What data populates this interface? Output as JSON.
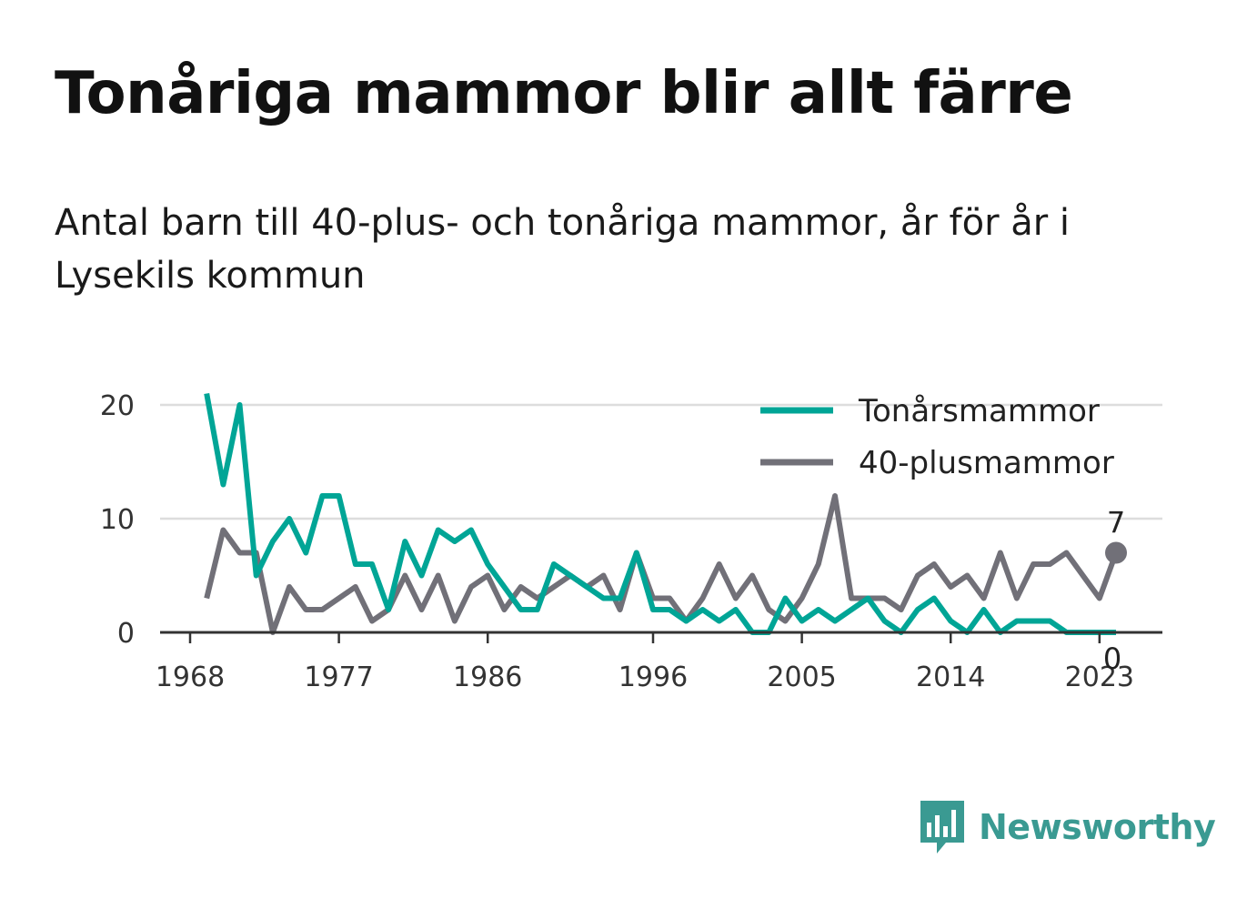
{
  "title": "Tonåriga mammor blir allt färre",
  "subtitle": "Antal barn till 40-plus- och tonåriga mammor, år för år i Lysekils kommun",
  "brand": {
    "name": "Newsworthy",
    "color": "#3a9a92",
    "icon": "newsworthy-logo-icon"
  },
  "colors": {
    "teen": "#00a596",
    "forty": "#717078",
    "grid": "#dddddd",
    "axis": "#333333"
  },
  "chart_data": {
    "type": "line",
    "x": [
      1969,
      1970,
      1971,
      1972,
      1973,
      1974,
      1975,
      1976,
      1977,
      1978,
      1979,
      1980,
      1981,
      1982,
      1983,
      1984,
      1985,
      1986,
      1987,
      1988,
      1989,
      1990,
      1991,
      1992,
      1993,
      1994,
      1995,
      1996,
      1997,
      1998,
      1999,
      2000,
      2001,
      2002,
      2003,
      2004,
      2005,
      2006,
      2007,
      2008,
      2009,
      2010,
      2011,
      2012,
      2013,
      2014,
      2015,
      2016,
      2017,
      2018,
      2019,
      2020,
      2021,
      2022,
      2023,
      2024
    ],
    "series": [
      {
        "name": "Tonårsmammor",
        "color": "#00a596",
        "values": [
          21,
          13,
          20,
          5,
          8,
          10,
          7,
          12,
          12,
          6,
          6,
          2,
          8,
          5,
          9,
          8,
          9,
          6,
          4,
          2,
          2,
          6,
          5,
          4,
          3,
          3,
          7,
          2,
          2,
          1,
          2,
          1,
          2,
          0,
          0,
          3,
          1,
          2,
          1,
          2,
          3,
          1,
          0,
          2,
          3,
          1,
          0,
          2,
          0,
          1,
          1,
          1,
          0,
          0,
          0,
          0
        ]
      },
      {
        "name": "40-plusmammor",
        "color": "#717078",
        "values": [
          3,
          9,
          7,
          7,
          0,
          4,
          2,
          2,
          3,
          4,
          1,
          2,
          5,
          2,
          5,
          1,
          4,
          5,
          2,
          4,
          3,
          4,
          5,
          4,
          5,
          2,
          7,
          3,
          3,
          1,
          3,
          6,
          3,
          5,
          2,
          1,
          3,
          6,
          12,
          3,
          3,
          3,
          2,
          5,
          6,
          4,
          5,
          3,
          7,
          3,
          6,
          6,
          7,
          5,
          3,
          7
        ]
      }
    ],
    "xticks": [
      1968,
      1977,
      1986,
      1996,
      2005,
      2014,
      2023
    ],
    "yticks": [
      0,
      10,
      20
    ],
    "xlim": [
      1968,
      2024
    ],
    "ylim": [
      0,
      20
    ],
    "legend_position": "top-right",
    "end_labels": {
      "teen": "0",
      "forty": "7"
    },
    "grid": true
  }
}
